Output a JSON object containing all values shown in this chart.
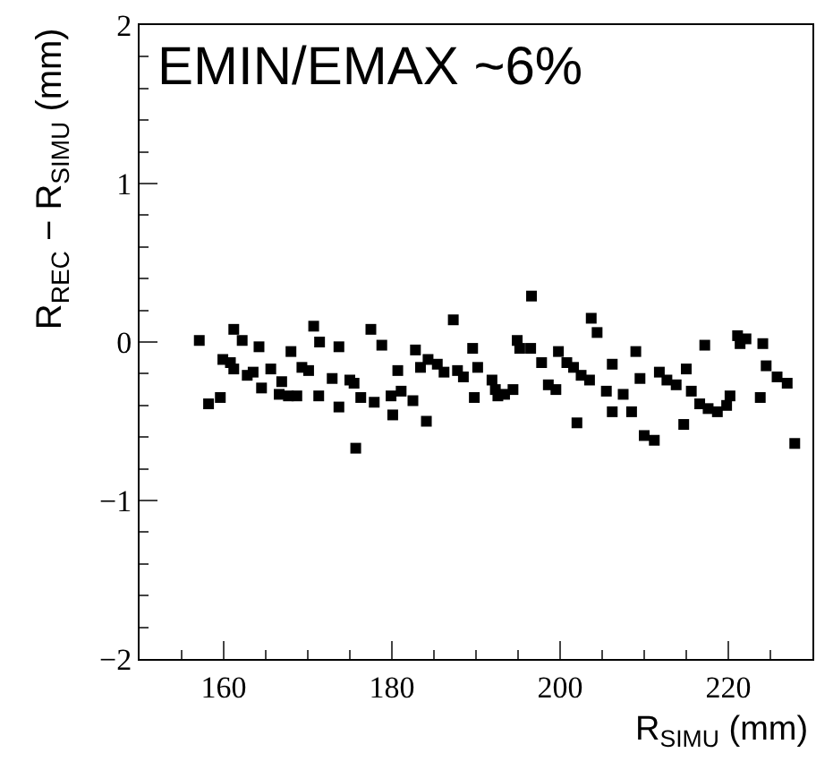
{
  "chart_data": {
    "type": "scatter",
    "xlabel": "R$_{SIMU}$ (mm)",
    "ylabel": "R$_{REC}$ − R$_{SIMU}$ (mm)",
    "annotations": [
      "EMIN/EMAX ~6%"
    ],
    "xlim": [
      150,
      230
    ],
    "xticks": [
      160,
      180,
      200,
      220
    ],
    "ylim": [
      -2,
      2
    ],
    "yticks": [
      {
        "value": -2,
        "label": "−2"
      },
      {
        "value": -1,
        "label": "−1"
      },
      0,
      1,
      2
    ],
    "marker": "square",
    "series": [
      {
        "color": "#000000",
        "x": [
          157.1,
          158.2,
          159.6,
          159.9,
          160.8,
          161.2,
          161.2,
          162.2,
          162.8,
          163.5,
          164.2,
          164.5,
          165.6,
          166.6,
          166.9,
          167.7,
          168.0,
          168.7,
          169.3,
          170.1,
          170.7,
          171.4,
          171.3,
          172.9,
          173.7,
          173.7,
          175.0,
          175.5,
          175.7,
          176.3,
          177.5,
          177.9,
          178.8,
          179.9,
          180.1,
          180.7,
          181.1,
          182.5,
          182.8,
          183.4,
          184.1,
          184.3,
          185.4,
          186.2,
          187.3,
          187.8,
          188.5,
          189.6,
          189.8,
          190.2,
          191.9,
          192.3,
          192.6,
          193.4,
          194.4,
          194.9,
          195.2,
          196.5,
          196.6,
          197.8,
          198.6,
          199.5,
          199.8,
          200.8,
          201.6,
          202.0,
          202.5,
          203.5,
          203.7,
          204.4,
          205.5,
          206.2,
          206.2,
          207.5,
          208.5,
          209.0,
          209.5,
          210.0,
          211.2,
          211.8,
          212.7,
          213.8,
          214.7,
          215.0,
          215.6,
          216.6,
          217.2,
          217.6,
          218.7,
          219.8,
          220.2,
          221.1,
          221.4,
          222.1,
          223.8,
          224.1,
          224.5,
          225.8,
          227.0,
          227.9
        ],
        "values": [
          0.01,
          -0.39,
          -0.35,
          -0.11,
          -0.13,
          -0.17,
          0.08,
          0.01,
          -0.21,
          -0.19,
          -0.03,
          -0.29,
          -0.17,
          -0.33,
          -0.25,
          -0.34,
          -0.06,
          -0.34,
          -0.16,
          -0.18,
          0.1,
          0.0,
          -0.34,
          -0.23,
          -0.03,
          -0.41,
          -0.24,
          -0.26,
          -0.67,
          -0.35,
          0.08,
          -0.38,
          -0.02,
          -0.34,
          -0.46,
          -0.18,
          -0.31,
          -0.37,
          -0.05,
          -0.16,
          -0.5,
          -0.11,
          -0.14,
          -0.19,
          0.14,
          -0.18,
          -0.22,
          -0.04,
          -0.35,
          -0.16,
          -0.24,
          -0.3,
          -0.34,
          -0.33,
          -0.3,
          0.01,
          -0.04,
          -0.04,
          0.29,
          -0.13,
          -0.27,
          -0.3,
          -0.06,
          -0.13,
          -0.16,
          -0.51,
          -0.21,
          -0.24,
          0.15,
          0.06,
          -0.31,
          -0.14,
          -0.44,
          -0.33,
          -0.44,
          -0.06,
          -0.23,
          -0.59,
          -0.62,
          -0.19,
          -0.24,
          -0.27,
          -0.52,
          -0.17,
          -0.31,
          -0.39,
          -0.02,
          -0.42,
          -0.44,
          -0.4,
          -0.34,
          0.04,
          -0.01,
          0.02,
          -0.35,
          -0.01,
          -0.15,
          -0.22,
          -0.26,
          -0.64
        ]
      }
    ]
  }
}
